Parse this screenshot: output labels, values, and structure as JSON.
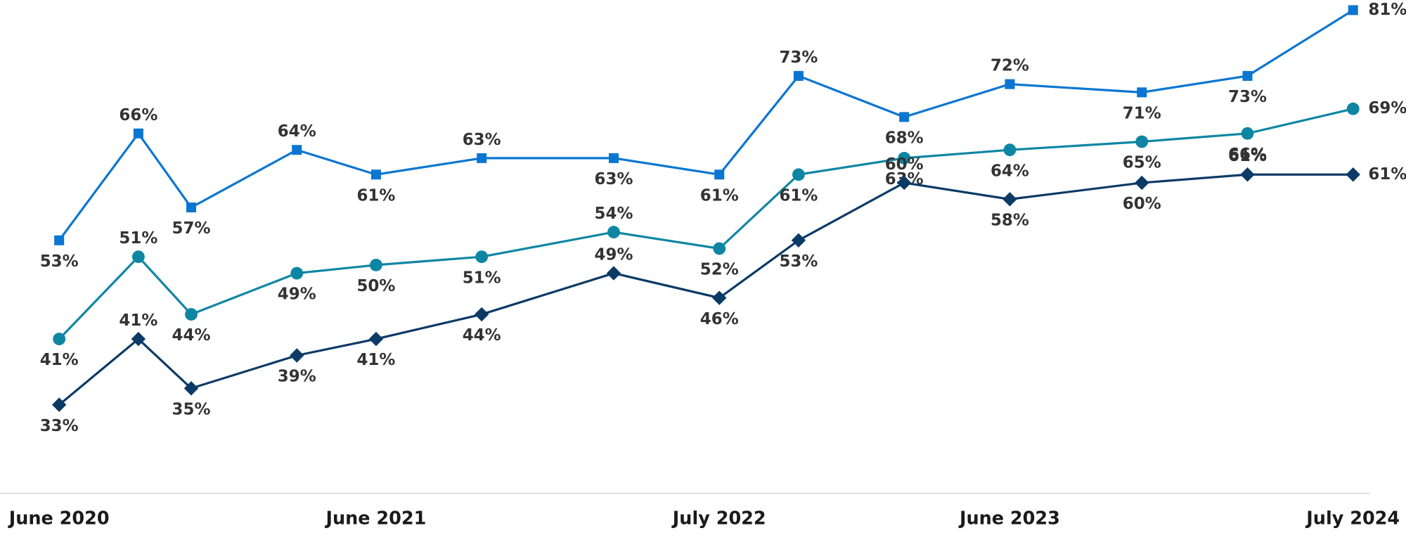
{
  "chart_data": {
    "type": "line",
    "x": [
      "2020-06",
      "2020-09",
      "2020-11",
      "2021-03",
      "2021-06",
      "2021-10",
      "2022-03",
      "2022-07",
      "2022-10",
      "2023-02",
      "2023-06",
      "2023-11",
      "2024-03",
      "2024-07"
    ],
    "xlim": [
      "2020-06",
      "2024-07"
    ],
    "xticks": [
      {
        "value": "2020-06",
        "label": "June 2020"
      },
      {
        "value": "2021-06",
        "label": "June 2021"
      },
      {
        "value": "2022-07",
        "label": "July 2022"
      },
      {
        "value": "2023-06",
        "label": "June 2023"
      },
      {
        "value": "2024-07",
        "label": "July 2024"
      }
    ],
    "ylim": [
      22,
      82
    ],
    "series": [
      {
        "color": "#0b76d1",
        "marker": "square",
        "values": [
          53,
          66,
          57,
          64,
          61,
          63,
          63,
          61,
          73,
          68,
          72,
          71,
          73,
          81
        ],
        "value_labels": [
          "53%",
          "66%",
          "57%",
          "64%",
          "61%",
          "63%",
          "63%",
          "61%",
          "73%",
          "68%",
          "72%",
          "71%",
          "73%",
          "81%"
        ]
      },
      {
        "color": "#0e86a3",
        "marker": "circle",
        "values": [
          41,
          51,
          44,
          49,
          50,
          51,
          54,
          52,
          61,
          63,
          64,
          65,
          66,
          69
        ],
        "value_labels": [
          "41%",
          "51%",
          "44%",
          "49%",
          "50%",
          "51%",
          "54%",
          "52%",
          "61%",
          "63%",
          "64%",
          "65%",
          "66%",
          "69%"
        ]
      },
      {
        "color": "#0b3a66",
        "marker": "diamond",
        "values": [
          33,
          41,
          35,
          39,
          41,
          44,
          49,
          46,
          53,
          60,
          58,
          60,
          61,
          61
        ],
        "value_labels": [
          "33%",
          "41%",
          "35%",
          "39%",
          "41%",
          "44%",
          "49%",
          "46%",
          "53%",
          "60%",
          "58%",
          "60%",
          "61%",
          "61%"
        ]
      }
    ]
  }
}
